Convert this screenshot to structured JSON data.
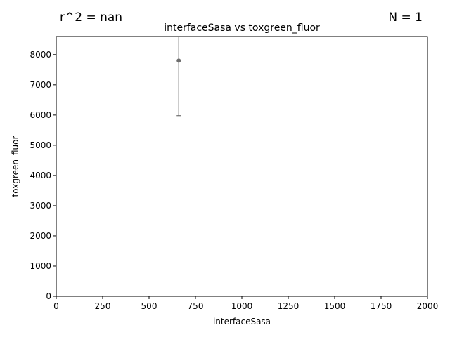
{
  "corner_left": "r^2 = nan",
  "corner_right": "N = 1",
  "chart_data": {
    "type": "scatter",
    "title": "interfaceSasa vs toxgreen_fluor",
    "xlabel": "interfaceSasa",
    "ylabel": "toxgreen_fluor",
    "xlim": [
      0,
      2000
    ],
    "ylim": [
      0,
      8600
    ],
    "xticks": [
      0,
      250,
      500,
      750,
      1000,
      1250,
      1500,
      1750,
      2000
    ],
    "yticks": [
      0,
      1000,
      2000,
      3000,
      4000,
      5000,
      6000,
      7000,
      8000
    ],
    "points": [
      {
        "x": 660,
        "y": 7800,
        "yerr_low": 5980,
        "yerr_high": 9650
      }
    ],
    "marker_color": "#6e6e6e",
    "grid": false
  }
}
